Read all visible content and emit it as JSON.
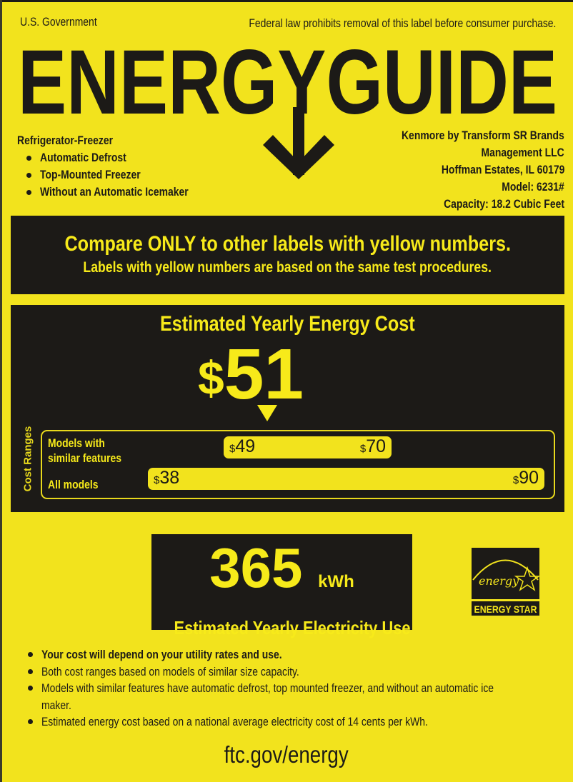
{
  "header": {
    "issuer": "U.S. Government",
    "notice": "Federal law prohibits removal of this label before consumer purchase.",
    "logo_text": "ENERGYGUIDE"
  },
  "product": {
    "type": "Refrigerator-Freezer",
    "features": [
      "Automatic Defrost",
      "Top-Mounted Freezer",
      "Without an Automatic Icemaker"
    ]
  },
  "manufacturer": {
    "lines": [
      "Kenmore by Transform SR Brands",
      "Management LLC",
      "Hoffman Estates, IL 60179",
      "Model: 6231#",
      "Capacity: 18.2 Cubic Feet"
    ]
  },
  "compare": {
    "line1": "Compare ONLY to other labels with yellow numbers.",
    "line2": "Labels with yellow numbers are based on the same test procedures."
  },
  "cost": {
    "title": "Estimated Yearly Energy Cost",
    "currency": "$",
    "value": "51",
    "ranges_label": "Cost Ranges",
    "similar": {
      "label_line1": "Models with",
      "label_line2": "similar features",
      "low": "49",
      "high": "70"
    },
    "all": {
      "label": "All models",
      "low": "38",
      "high": "90"
    }
  },
  "electricity": {
    "value": "365",
    "unit": "kWh",
    "label": "Estimated Yearly Electricity Use"
  },
  "energy_star": {
    "script": "energy",
    "label": "ENERGY STAR"
  },
  "notes": [
    "Your cost will depend on your utility rates and use.",
    "Both cost ranges based on models of similar size capacity.",
    "Models with similar features have automatic defrost, top mounted freezer, and without an automatic ice maker.",
    "Estimated energy cost based on a national average electricity cost of 14 cents per kWh."
  ],
  "footer": {
    "url": "ftc.gov/energy"
  },
  "colors": {
    "background": "#f2e31d",
    "panel": "#1c1a17",
    "highlight": "#f7ea1a"
  }
}
